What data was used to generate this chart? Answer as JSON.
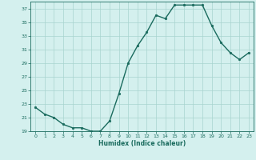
{
  "x": [
    0,
    1,
    2,
    3,
    4,
    5,
    6,
    7,
    8,
    9,
    10,
    11,
    12,
    13,
    14,
    15,
    16,
    17,
    18,
    19,
    20,
    21,
    22,
    23
  ],
  "y": [
    22.5,
    21.5,
    21.0,
    20.0,
    19.5,
    19.5,
    19.0,
    19.0,
    20.5,
    24.5,
    29.0,
    31.5,
    33.5,
    36.0,
    35.5,
    37.5,
    37.5,
    37.5,
    37.5,
    34.5,
    32.0,
    30.5,
    29.5,
    30.5
  ],
  "line_color": "#1a6b5e",
  "marker": "o",
  "marker_size": 2.0,
  "line_width": 1.0,
  "bg_color": "#d4f0ee",
  "grid_color": "#a8d4cf",
  "tick_color": "#1a6b5e",
  "label_color": "#1a6b5e",
  "xlabel": "Humidex (Indice chaleur)",
  "ylim": [
    19,
    38
  ],
  "yticks": [
    19,
    21,
    23,
    25,
    27,
    29,
    31,
    33,
    35,
    37
  ],
  "xticks": [
    0,
    1,
    2,
    3,
    4,
    5,
    6,
    7,
    8,
    9,
    10,
    11,
    12,
    13,
    14,
    15,
    16,
    17,
    18,
    19,
    20,
    21,
    22,
    23
  ],
  "xlim": [
    -0.5,
    23.5
  ]
}
